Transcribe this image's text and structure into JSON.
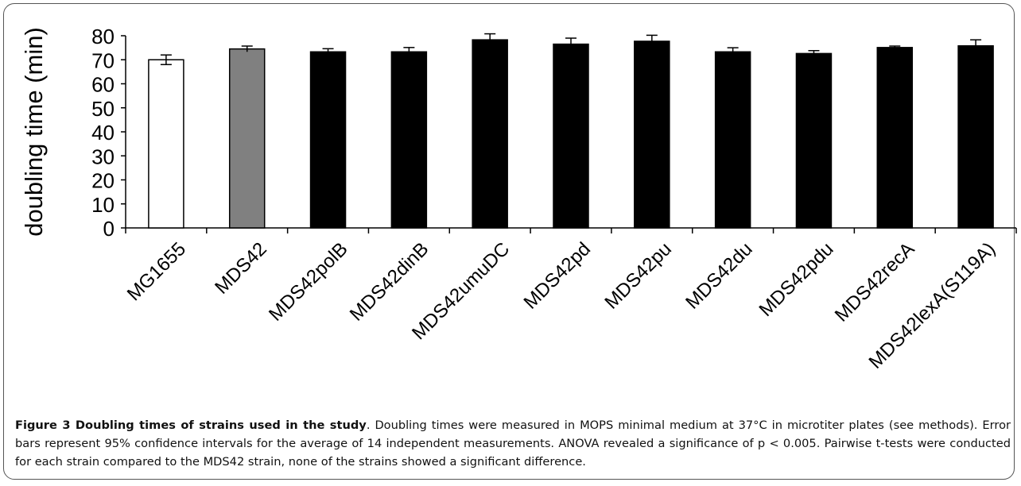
{
  "chart_data": {
    "type": "bar",
    "ylabel": "doubling time (min)",
    "ylim": [
      0,
      80
    ],
    "yticks": [
      0,
      10,
      20,
      30,
      40,
      50,
      60,
      70,
      80
    ],
    "categories": [
      "MG1655",
      "MDS42",
      "MDS42polB",
      "MDS42dinB",
      "MDS42umuDC",
      "MDS42pd",
      "MDS42pu",
      "MDS42du",
      "MDS42pdu",
      "MDS42recA",
      "MDS42lexA(S119A)"
    ],
    "values": [
      70,
      74.5,
      73.3,
      73.3,
      78.3,
      76.5,
      77.7,
      73.3,
      72.6,
      75.1,
      75.8
    ],
    "errors": [
      2.0,
      1.2,
      1.3,
      1.8,
      2.5,
      2.5,
      2.5,
      1.7,
      1.2,
      0.6,
      2.5
    ],
    "bar_colors": [
      "#ffffff",
      "#808080",
      "#000000",
      "#000000",
      "#000000",
      "#000000",
      "#000000",
      "#000000",
      "#000000",
      "#000000",
      "#000000"
    ],
    "grid": false,
    "legend": "none"
  },
  "caption": {
    "title": "Figure 3 Doubling times of strains used in the study",
    "text": ". Doubling times were measured in MOPS minimal medium at 37°C in microtiter plates (see methods). Error bars represent 95% confidence intervals for the average of 14 independent measurements. ANOVA revealed a significance of p < 0.005. Pairwise t-tests were conducted for each strain compared to the MDS42 strain, none of the strains showed a significant difference."
  }
}
